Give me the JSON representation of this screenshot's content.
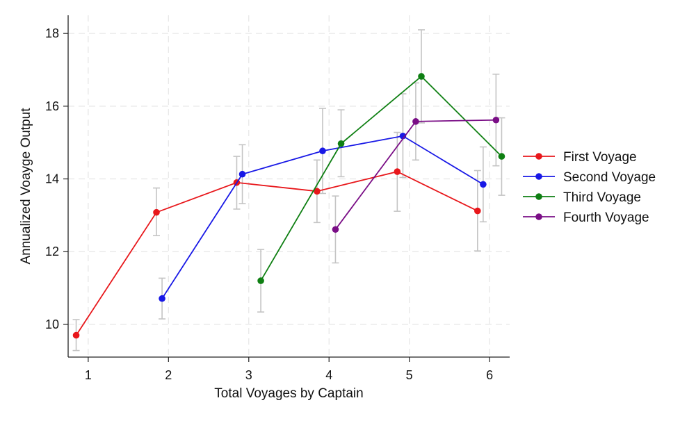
{
  "chart_data": {
    "type": "line",
    "title": "",
    "xlabel": "Total Voyages by Captain",
    "ylabel": "Annualized Voayge Output",
    "xlim": [
      0.75,
      6.25
    ],
    "ylim": [
      9.1,
      18.5
    ],
    "xticks": [
      1,
      2,
      3,
      4,
      5,
      6
    ],
    "yticks": [
      10,
      12,
      14,
      16,
      18
    ],
    "grid": true,
    "legend_position": "right",
    "error_bars": true,
    "series": [
      {
        "name": "First Voyage",
        "color": "#e8171b",
        "x": [
          0.85,
          1.85,
          2.85,
          3.85,
          4.85,
          5.85
        ],
        "y": [
          9.7,
          13.08,
          13.9,
          13.66,
          14.2,
          13.12
        ],
        "low": [
          9.28,
          12.44,
          13.17,
          12.8,
          13.11,
          12.02
        ],
        "high": [
          10.13,
          13.75,
          14.62,
          14.52,
          15.28,
          14.23
        ]
      },
      {
        "name": "Second Voyage",
        "color": "#1818e6",
        "x": [
          1.92,
          2.92,
          3.92,
          4.92,
          5.92
        ],
        "y": [
          10.71,
          14.13,
          14.77,
          15.18,
          13.85
        ],
        "low": [
          10.15,
          13.32,
          13.6,
          14.04,
          12.82
        ],
        "high": [
          11.27,
          14.94,
          15.94,
          16.34,
          14.88
        ]
      },
      {
        "name": "Third Voyage",
        "color": "#0e7f12",
        "x": [
          3.15,
          4.15,
          5.15,
          6.15
        ],
        "y": [
          11.2,
          14.97,
          16.82,
          14.62
        ],
        "low": [
          10.34,
          14.06,
          15.54,
          13.55
        ],
        "high": [
          12.06,
          15.9,
          18.1,
          15.68
        ]
      },
      {
        "name": "Fourth Voyage",
        "color": "#7a0e86",
        "x": [
          4.08,
          5.08,
          6.08
        ],
        "y": [
          12.61,
          15.58,
          15.62
        ],
        "low": [
          11.69,
          14.52,
          14.36
        ],
        "high": [
          13.53,
          16.64,
          16.88
        ]
      }
    ]
  }
}
